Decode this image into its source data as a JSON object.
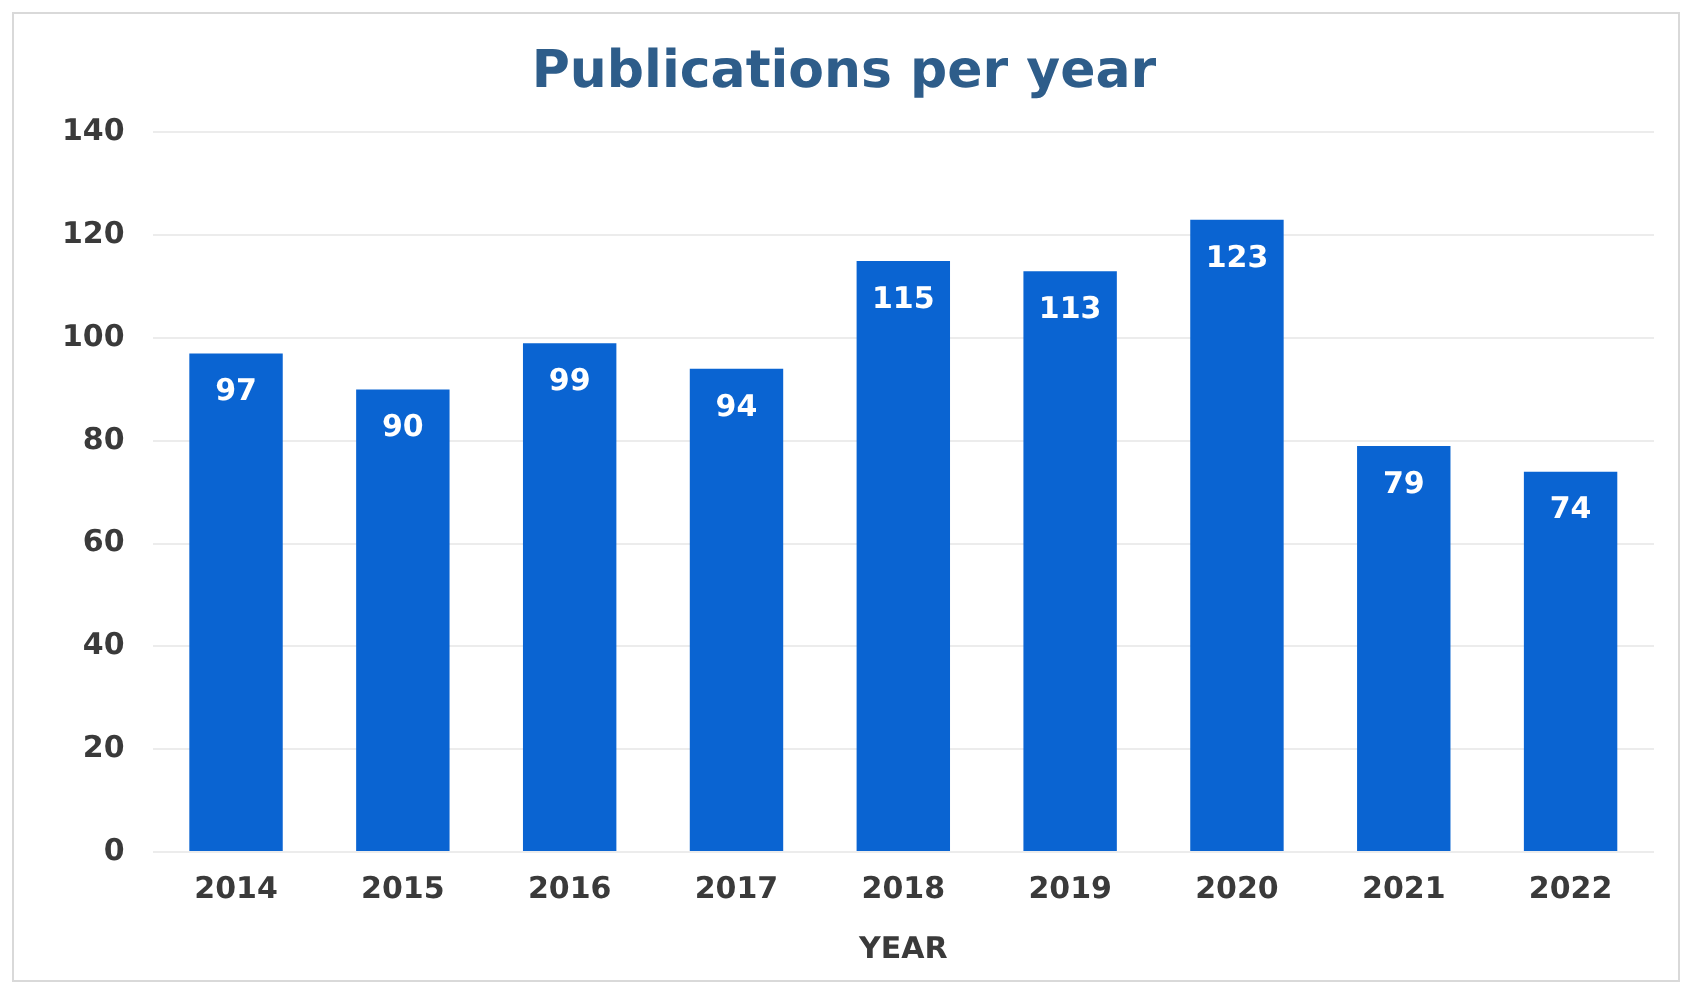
{
  "chart_data": {
    "type": "bar",
    "title": "Publications per year",
    "xlabel": "YEAR",
    "categories": [
      "2014",
      "2015",
      "2016",
      "2017",
      "2018",
      "2019",
      "2020",
      "2021",
      "2022"
    ],
    "values": [
      97,
      90,
      99,
      94,
      115,
      113,
      123,
      79,
      74
    ],
    "color": "#0a64d2",
    "ylim": [
      0,
      140
    ],
    "yticks": [
      0,
      20,
      40,
      60,
      80,
      100,
      120,
      140
    ],
    "grid": "y",
    "data_labels": true,
    "legend": false
  }
}
